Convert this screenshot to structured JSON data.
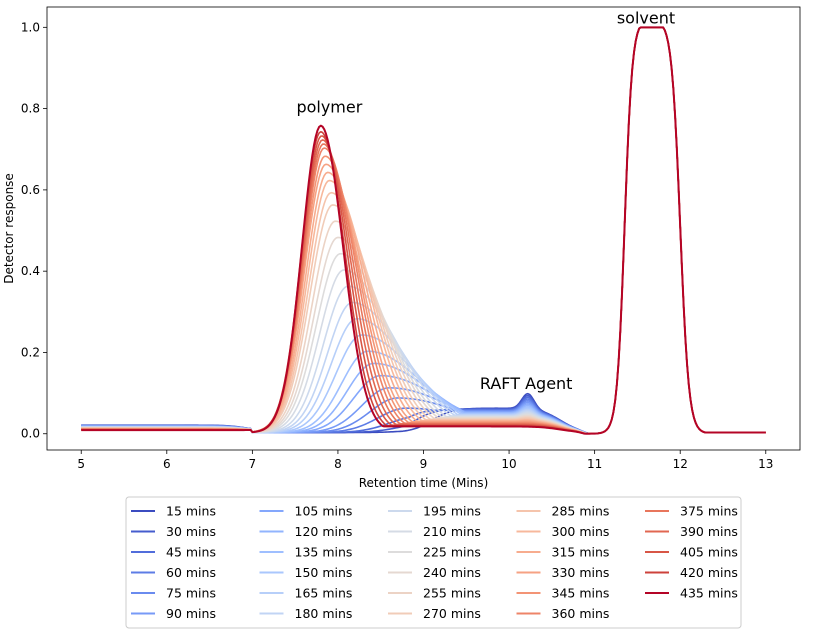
{
  "chart_data": {
    "type": "line",
    "title": "",
    "xlabel": "Retention time (Mins)",
    "ylabel": "Detector response",
    "xlim": [
      4.6,
      13.4
    ],
    "ylim": [
      -0.04,
      1.05
    ],
    "xticks": [
      5,
      6,
      7,
      8,
      9,
      10,
      11,
      12,
      13
    ],
    "yticks": [
      0.0,
      0.2,
      0.4,
      0.6,
      0.8,
      1.0
    ],
    "ytick_labels": [
      "0.0",
      "0.2",
      "0.4",
      "0.6",
      "0.8",
      "1.0"
    ],
    "grid": false,
    "legend_placement": "below",
    "colormap": "coolwarm",
    "annotations": [
      {
        "text": "polymer",
        "x": 7.9,
        "y": 0.79,
        "color": "#000000"
      },
      {
        "text": "RAFT Agent",
        "x": 10.2,
        "y": 0.11,
        "color": "#000000"
      },
      {
        "text": "solvent",
        "x": 11.6,
        "y": 1.01,
        "color": "#d62728"
      }
    ],
    "series": [
      {
        "name": "15 mins",
        "color": "#3b4cc0",
        "peak_x": 9.3,
        "peak_y": 0.012
      },
      {
        "name": "30 mins",
        "color": "#455cce",
        "peak_x": 9.1,
        "peak_y": 0.025
      },
      {
        "name": "45 mins",
        "color": "#516ddb",
        "peak_x": 8.95,
        "peak_y": 0.04
      },
      {
        "name": "60 mins",
        "color": "#5d7ce6",
        "peak_x": 8.8,
        "peak_y": 0.06
      },
      {
        "name": "75 mins",
        "color": "#6a8bef",
        "peak_x": 8.7,
        "peak_y": 0.085
      },
      {
        "name": "90 mins",
        "color": "#779af7",
        "peak_x": 8.6,
        "peak_y": 0.11
      },
      {
        "name": "105 mins",
        "color": "#84a7fc",
        "peak_x": 8.5,
        "peak_y": 0.14
      },
      {
        "name": "120 mins",
        "color": "#92b4fe",
        "peak_x": 8.42,
        "peak_y": 0.17
      },
      {
        "name": "135 mins",
        "color": "#9fbfff",
        "peak_x": 8.35,
        "peak_y": 0.2
      },
      {
        "name": "150 mins",
        "color": "#aac7fd",
        "peak_x": 8.28,
        "peak_y": 0.24
      },
      {
        "name": "165 mins",
        "color": "#b7cff9",
        "peak_x": 8.22,
        "peak_y": 0.28
      },
      {
        "name": "180 mins",
        "color": "#c1d4f4",
        "peak_x": 8.17,
        "peak_y": 0.32
      },
      {
        "name": "195 mins",
        "color": "#ccd9ed",
        "peak_x": 8.12,
        "peak_y": 0.36
      },
      {
        "name": "210 mins",
        "color": "#d5dbe5",
        "peak_x": 8.07,
        "peak_y": 0.4
      },
      {
        "name": "225 mins",
        "color": "#dddcdc",
        "peak_x": 8.03,
        "peak_y": 0.44
      },
      {
        "name": "240 mins",
        "color": "#e5d8d1",
        "peak_x": 8.0,
        "peak_y": 0.48
      },
      {
        "name": "255 mins",
        "color": "#ecd3c5",
        "peak_x": 7.97,
        "peak_y": 0.52
      },
      {
        "name": "270 mins",
        "color": "#f1ccb8",
        "peak_x": 7.94,
        "peak_y": 0.56
      },
      {
        "name": "285 mins",
        "color": "#f5c4ac",
        "peak_x": 7.92,
        "peak_y": 0.59
      },
      {
        "name": "300 mins",
        "color": "#f7b89c",
        "peak_x": 7.9,
        "peak_y": 0.62
      },
      {
        "name": "315 mins",
        "color": "#f7ac8e",
        "peak_x": 7.88,
        "peak_y": 0.64
      },
      {
        "name": "330 mins",
        "color": "#f6a283",
        "peak_x": 7.86,
        "peak_y": 0.66
      },
      {
        "name": "345 mins",
        "color": "#f39475",
        "peak_x": 7.85,
        "peak_y": 0.68
      },
      {
        "name": "360 mins",
        "color": "#ee8468",
        "peak_x": 7.84,
        "peak_y": 0.7
      },
      {
        "name": "375 mins",
        "color": "#e8765c",
        "peak_x": 7.83,
        "peak_y": 0.71
      },
      {
        "name": "390 mins",
        "color": "#e16751",
        "peak_x": 7.82,
        "peak_y": 0.72
      },
      {
        "name": "405 mins",
        "color": "#d85646",
        "peak_x": 7.81,
        "peak_y": 0.73
      },
      {
        "name": "420 mins",
        "color": "#cd423b",
        "peak_x": 7.8,
        "peak_y": 0.74
      },
      {
        "name": "435 mins",
        "color": "#b40426",
        "peak_x": 7.8,
        "peak_y": 0.755
      }
    ]
  }
}
